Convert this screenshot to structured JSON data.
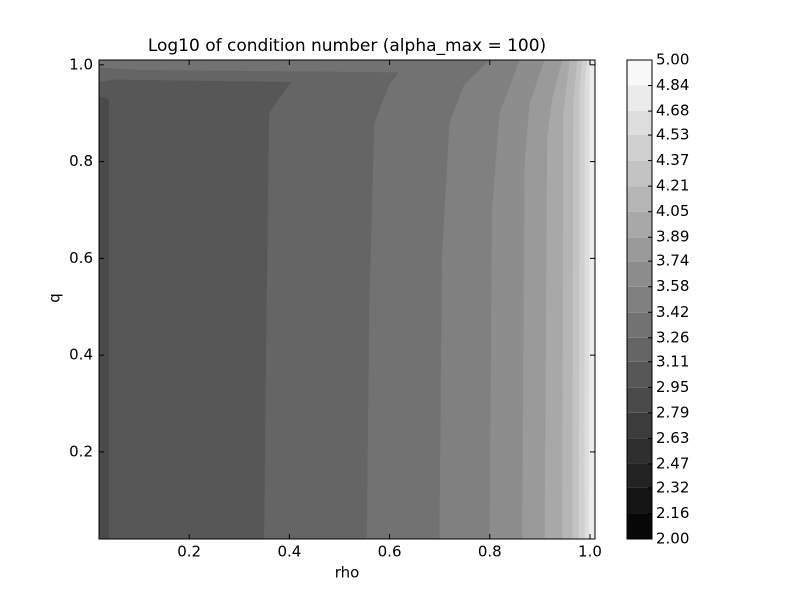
{
  "chart_data": {
    "type": "contourf",
    "title": "Log10 of condition number (alpha_max = 100)",
    "xlabel": "rho",
    "ylabel": "q",
    "xlim": [
      0.02,
      1.01
    ],
    "ylim": [
      0.02,
      1.01
    ],
    "xticks": [
      0.2,
      0.4,
      0.6,
      0.8,
      {
        "value": 1,
        "label": "1.0"
      }
    ],
    "yticks": [
      0.2,
      0.4,
      0.6,
      0.8,
      {
        "value": 1,
        "label": "1.0"
      }
    ],
    "colormap": "gray",
    "levels": [
      {
        "value": 2,
        "label": "2.00"
      },
      2.16,
      2.32,
      2.47,
      2.63,
      2.79,
      2.95,
      3.11,
      3.26,
      3.42,
      3.58,
      3.74,
      3.89,
      4.05,
      4.21,
      4.37,
      4.53,
      4.68,
      4.84,
      {
        "value": 5,
        "label": "5.00"
      }
    ],
    "base_level": 2.79,
    "contours": [
      {
        "level": 2.95,
        "points": [
          [
            0.04,
            0.02
          ],
          [
            0.04,
            0.93
          ],
          [
            0.02,
            0.935
          ]
        ]
      },
      {
        "level": 3.11,
        "points": [
          [
            0.35,
            0.02
          ],
          [
            0.355,
            0.5
          ],
          [
            0.36,
            0.9
          ],
          [
            0.38,
            0.93
          ],
          [
            0.405,
            0.965
          ],
          [
            0.05,
            0.97
          ],
          [
            0.02,
            0.965
          ]
        ]
      },
      {
        "level": 3.26,
        "points": [
          [
            0.555,
            0.02
          ],
          [
            0.56,
            0.5
          ],
          [
            0.57,
            0.88
          ],
          [
            0.6,
            0.96
          ],
          [
            0.62,
            0.985
          ],
          [
            0.1,
            0.99
          ],
          [
            0.02,
            0.995
          ]
        ]
      },
      {
        "level": 3.42,
        "points": [
          [
            0.7,
            0.02
          ],
          [
            0.705,
            0.6
          ],
          [
            0.72,
            0.88
          ],
          [
            0.75,
            0.96
          ],
          [
            0.8,
            1.01
          ]
        ]
      },
      {
        "level": 3.58,
        "points": [
          [
            0.8,
            0.02
          ],
          [
            0.805,
            0.7
          ],
          [
            0.82,
            0.9
          ],
          [
            0.86,
            1.01
          ]
        ]
      },
      {
        "level": 3.74,
        "points": [
          [
            0.865,
            0.02
          ],
          [
            0.87,
            0.8
          ],
          [
            0.88,
            0.92
          ],
          [
            0.91,
            1.01
          ]
        ]
      },
      {
        "level": 3.89,
        "points": [
          [
            0.91,
            0.02
          ],
          [
            0.915,
            0.85
          ],
          [
            0.925,
            0.93
          ],
          [
            0.945,
            1.01
          ]
        ]
      },
      {
        "level": 4.05,
        "points": [
          [
            0.945,
            0.02
          ],
          [
            0.947,
            0.9
          ],
          [
            0.96,
            1.01
          ]
        ]
      },
      {
        "level": 4.21,
        "points": [
          [
            0.965,
            0.02
          ],
          [
            0.967,
            0.92
          ],
          [
            0.975,
            1.01
          ]
        ]
      },
      {
        "level": 4.37,
        "points": [
          [
            0.978,
            0.02
          ],
          [
            0.98,
            0.95
          ],
          [
            0.985,
            1.01
          ]
        ]
      },
      {
        "level": 4.53,
        "points": [
          [
            0.99,
            0.02
          ],
          [
            0.99,
            0.96
          ],
          [
            0.995,
            1.01
          ]
        ]
      },
      {
        "level": 4.68,
        "points": [
          [
            0.998,
            0.02
          ],
          [
            1,
            1.01
          ]
        ]
      }
    ]
  }
}
